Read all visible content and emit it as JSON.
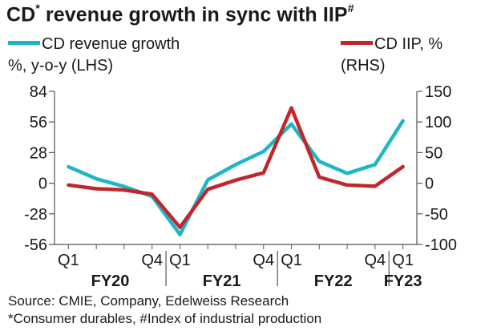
{
  "title_main": "CD",
  "title_mark": "*",
  "title_rest": " revenue growth in sync with IIP",
  "title_mark2": "#",
  "legend": {
    "left_line1": "CD revenue growth",
    "left_line2": "%, y-o-y (LHS)",
    "right_line1": "CD IIP, %",
    "right_line2": "(RHS)"
  },
  "source": "Source: CMIE, Company, Edelweiss Research",
  "note": "*Consumer durables, #Index of industrial production",
  "chart_data": {
    "type": "line",
    "x_tick_labels": [
      "Q1",
      "Q4",
      "Q1",
      "Q4",
      "Q1",
      "Q4",
      "Q1"
    ],
    "x_tick_positions": [
      0,
      3,
      4,
      7,
      8,
      11,
      12
    ],
    "fiscal_years": [
      {
        "label": "FY20",
        "start": 0,
        "end": 3
      },
      {
        "label": "FY21",
        "start": 4,
        "end": 7
      },
      {
        "label": "FY22",
        "start": 8,
        "end": 11
      },
      {
        "label": "FY23",
        "start": 12,
        "end": 12
      }
    ],
    "left_axis": {
      "ticks": [
        84,
        56,
        28,
        0,
        -28,
        -56
      ],
      "ylim": [
        -56,
        84
      ]
    },
    "right_axis": {
      "ticks": [
        150,
        100,
        50,
        0,
        -50,
        -100
      ],
      "ylim": [
        -100,
        150
      ]
    },
    "series": [
      {
        "name": "CD revenue growth %, y-o-y (LHS)",
        "axis": "left",
        "color": "#1fb5c8",
        "values": [
          15,
          4,
          -3,
          -12,
          -47,
          3,
          17,
          29,
          54,
          20,
          9,
          17,
          57
        ]
      },
      {
        "name": "CD IIP, % (RHS)",
        "axis": "right",
        "color": "#c0272d",
        "values": [
          -3,
          -9,
          -11,
          -18,
          -72,
          -10,
          5,
          17,
          123,
          10,
          -3,
          -5,
          27
        ]
      }
    ]
  }
}
